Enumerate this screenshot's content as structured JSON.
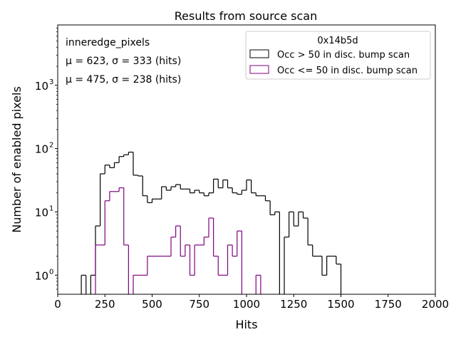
{
  "chart_data": {
    "type": "histogram",
    "title": "Results from source scan",
    "xlabel": "Hits",
    "ylabel": "Number of enabled pixels",
    "xlim": [
      0,
      2000
    ],
    "ylim": [
      0.5,
      9000
    ],
    "yscale": "log",
    "bin_width": 25,
    "x_ticks": [
      0,
      250,
      500,
      750,
      1000,
      1250,
      1500,
      1750,
      2000
    ],
    "x_tick_labels": [
      "0",
      "250",
      "500",
      "750",
      "1000",
      "1250",
      "1500",
      "1750",
      "2000"
    ],
    "y_ticks": [
      1,
      10,
      100,
      1000
    ],
    "y_tick_labels": [
      "10",
      "10",
      "10",
      "10"
    ],
    "y_tick_exponents": [
      "0",
      "1",
      "2",
      "3"
    ],
    "grid": false,
    "legend": {
      "title": "0x14b5d",
      "placement": "top-right"
    },
    "annotations": {
      "name": "inneredge_pixels",
      "lines": [
        {
          "text": "μ = 623, σ = 333 (hits)",
          "color": "#000000"
        },
        {
          "text": "μ = 475, σ = 238 (hits)",
          "color": "#800080"
        }
      ]
    },
    "series": [
      {
        "name": "Occ > 50 in disc. bump scan",
        "color": "#000000",
        "bins": [
          [
            125,
            1
          ],
          [
            150,
            0
          ],
          [
            175,
            1
          ],
          [
            200,
            6
          ],
          [
            225,
            40
          ],
          [
            250,
            55
          ],
          [
            275,
            50
          ],
          [
            300,
            60
          ],
          [
            325,
            75
          ],
          [
            350,
            80
          ],
          [
            375,
            88
          ],
          [
            400,
            38
          ],
          [
            425,
            37
          ],
          [
            450,
            18
          ],
          [
            475,
            14
          ],
          [
            500,
            16
          ],
          [
            525,
            16
          ],
          [
            550,
            25
          ],
          [
            575,
            22
          ],
          [
            600,
            25
          ],
          [
            625,
            27
          ],
          [
            650,
            23
          ],
          [
            675,
            23
          ],
          [
            700,
            20
          ],
          [
            725,
            22
          ],
          [
            750,
            20
          ],
          [
            775,
            18
          ],
          [
            800,
            20
          ],
          [
            825,
            33
          ],
          [
            850,
            24
          ],
          [
            875,
            32
          ],
          [
            900,
            24
          ],
          [
            925,
            20
          ],
          [
            950,
            19
          ],
          [
            975,
            22
          ],
          [
            1000,
            32
          ],
          [
            1025,
            20
          ],
          [
            1050,
            18
          ],
          [
            1075,
            18
          ],
          [
            1100,
            15
          ],
          [
            1125,
            9
          ],
          [
            1150,
            10
          ],
          [
            1175,
            0
          ],
          [
            1200,
            4
          ],
          [
            1225,
            10
          ],
          [
            1250,
            6
          ],
          [
            1275,
            10
          ],
          [
            1300,
            8
          ],
          [
            1325,
            3
          ],
          [
            1350,
            2
          ],
          [
            1375,
            2
          ],
          [
            1400,
            1
          ],
          [
            1425,
            2
          ],
          [
            1450,
            2
          ],
          [
            1475,
            1.5
          ]
        ]
      },
      {
        "name": "Occ <= 50 in disc. bump scan",
        "color": "#800080",
        "bins": [
          [
            200,
            3
          ],
          [
            225,
            3
          ],
          [
            250,
            15
          ],
          [
            275,
            21
          ],
          [
            300,
            21
          ],
          [
            325,
            24
          ],
          [
            350,
            3
          ],
          [
            375,
            0
          ],
          [
            400,
            1
          ],
          [
            425,
            1
          ],
          [
            450,
            1
          ],
          [
            475,
            2
          ],
          [
            500,
            2
          ],
          [
            525,
            2
          ],
          [
            550,
            2
          ],
          [
            575,
            2
          ],
          [
            600,
            4
          ],
          [
            625,
            6
          ],
          [
            650,
            2
          ],
          [
            675,
            3
          ],
          [
            700,
            1
          ],
          [
            725,
            3
          ],
          [
            750,
            3
          ],
          [
            775,
            4
          ],
          [
            800,
            8
          ],
          [
            825,
            2
          ],
          [
            850,
            1
          ],
          [
            875,
            1
          ],
          [
            900,
            3
          ],
          [
            925,
            2
          ],
          [
            950,
            5
          ],
          [
            975,
            0
          ],
          [
            1000,
            0
          ],
          [
            1025,
            0
          ],
          [
            1050,
            1
          ]
        ]
      }
    ]
  }
}
